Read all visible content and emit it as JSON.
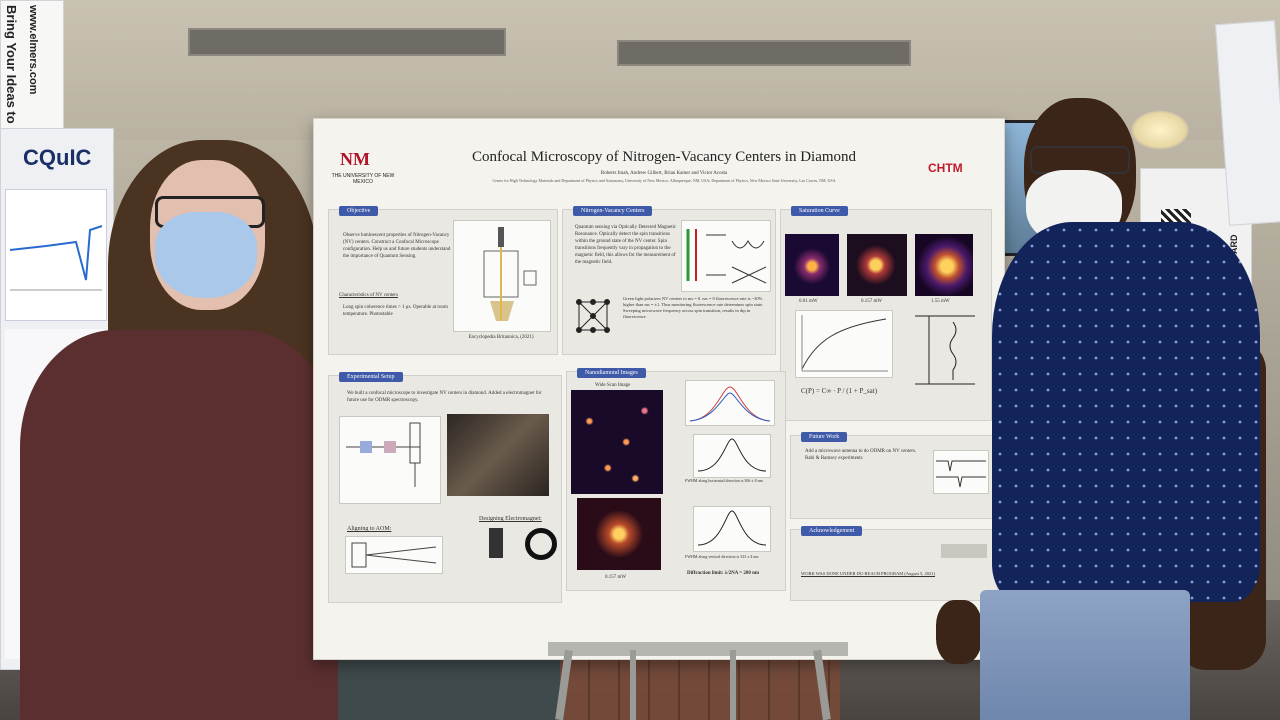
{
  "left_poster": {
    "vertical_text": "Bring Your Ideas to Life",
    "url": "www.elmers.com",
    "logo_text": "CQuIC"
  },
  "poster": {
    "university": "THE UNIVERSITY OF NEW MEXICO",
    "partner_logo": "CHTM",
    "title": "Confocal Microscopy of Nitrogen-Vacancy Centers in Diamond",
    "authors": "Roberts Ituah, Andrew Gilbert, Brian Kamer and Victor Acosta",
    "affiliations": "Center for High Technology Materials and Department of Physics and Astronomy, University of New Mexico, Albuquerque, NM, USA; Department of Physics, New Mexico State University, Las Cruces, NM, USA",
    "sections": {
      "objective": {
        "heading": "Objective",
        "body": "Observe luminescent properties of Nitrogen-Vacancy (NV) centers. Construct a Confocal Microscope configuration. Help us and future students understand the importance of Quantum Sensing.",
        "subheading": "Characteristics of NV centers",
        "bullets": "Long spin coherence times > 1 μs. Operable at room temperature. Photostable",
        "caption": "Encyclopedia Britannica, (2021)"
      },
      "nv_centers": {
        "heading": "Nitrogen-Vacancy Centers",
        "body": "Quantum sensing via Optically Detected Magnetic Resonance. Optically detect the spin transitions within the ground state of the NV center. Spin transitions frequently vary in propagation to the magnetic field, this allows for the measurement of the magnetic field.",
        "body2": "Green light polarizes NV centers to ms = 0. ms = 0 fluorescence rate is ~30% higher than ms = ±1. Thus monitoring fluorescence rate determines spin state. Sweeping microwave frequency across spin transition, results in dip in fluorescence"
      },
      "saturation": {
        "heading": "Saturation Curve",
        "labels": [
          "0.01 mW",
          "0.157 mW",
          "1.55 mW"
        ],
        "formula": "C(P) = C∞ · P / (1 + P_sat)"
      },
      "setup": {
        "heading": "Experimental Setup",
        "body": "We built a confocal microscope to investigate NV centers in diamond. Added a electromagnet for future use for ODMR spectroscopy.",
        "aligning": "Aligning to AOM:",
        "electromagnet": "Designing Electromagnet:"
      },
      "nanodiamond": {
        "heading": "Nanodiamond Images",
        "wide_scan": "Wide Scan Image",
        "image_label": "0.157 mW",
        "fwhm_h": "FWHM along horizontal direction is 306 ± 8 nm",
        "fwhm_v": "FWHM along vertical direction is 333 ± 4 nm",
        "diffraction": "Diffraction limit: λ/2NA = 280 nm"
      },
      "future": {
        "heading": "Future Work",
        "body": "Add a microwave antenna to do ODMR on NV centers. Rabi & Ramsey experiments"
      },
      "ack": {
        "heading": "Acknowledgement",
        "body": "WORK WAS DONE UNDER DU-REACH PROGRAM (August 5, 2021)"
      }
    }
  },
  "right_poster": {
    "text": "WHITE BOARD"
  },
  "colors": {
    "poster_header_blue": "#3e5aa8",
    "unm_red": "#b0122a",
    "shirt_left": "#5b2f2f",
    "shirt_right": "#13245a",
    "jeans": "#8ea3c4"
  }
}
